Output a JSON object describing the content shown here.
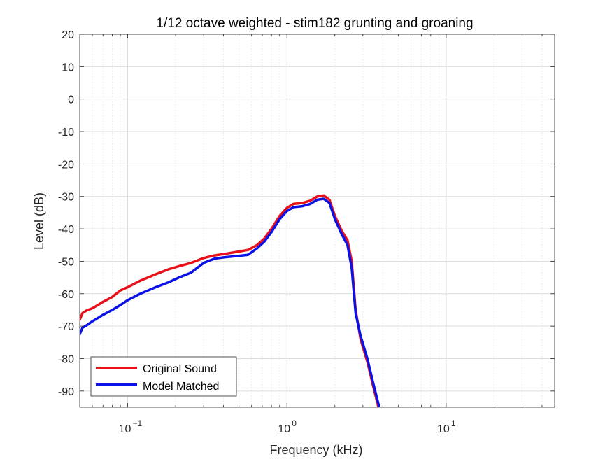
{
  "chart_data": {
    "type": "line",
    "title": "1/12 octave weighted - stim182 grunting and groaning",
    "xlabel": "Frequency (kHz)",
    "ylabel": "Level (dB)",
    "xscale": "log",
    "xlim": [
      0.05,
      48
    ],
    "ylim": [
      -95,
      20
    ],
    "grid": true,
    "minor_grid": true,
    "legend_location": "bottom-left",
    "yticks": [
      20,
      10,
      0,
      -10,
      -20,
      -30,
      -40,
      -50,
      -60,
      -70,
      -80,
      -90
    ],
    "xticks": [
      {
        "value": 0.1,
        "base": "10",
        "exp": "−1"
      },
      {
        "value": 1,
        "base": "10",
        "exp": "0"
      },
      {
        "value": 10,
        "base": "10",
        "exp": "1"
      }
    ],
    "series": [
      {
        "name": "Original Sound",
        "color": "#e8101a",
        "x": [
          0.05,
          0.052,
          0.055,
          0.06,
          0.065,
          0.07,
          0.08,
          0.09,
          0.1,
          0.12,
          0.15,
          0.18,
          0.21,
          0.25,
          0.3,
          0.35,
          0.4,
          0.5,
          0.57,
          0.65,
          0.72,
          0.8,
          0.9,
          1.0,
          1.1,
          1.25,
          1.4,
          1.55,
          1.7,
          1.85,
          2.0,
          2.2,
          2.4,
          2.55,
          2.7,
          2.9,
          3.2,
          3.5,
          3.8
        ],
        "y": [
          -68,
          -66,
          -65.2,
          -64.5,
          -63.5,
          -62.5,
          -61,
          -59,
          -58,
          -56,
          -54,
          -52.5,
          -51.5,
          -50.5,
          -49,
          -48.2,
          -47.8,
          -47,
          -46.5,
          -45,
          -43,
          -40,
          -36,
          -33.5,
          -32.3,
          -32,
          -31.3,
          -30,
          -29.7,
          -31,
          -36,
          -40.5,
          -43.5,
          -50,
          -65,
          -74,
          -81,
          -89,
          -96
        ]
      },
      {
        "name": "Model Matched",
        "color": "#0b12e6",
        "x": [
          0.05,
          0.052,
          0.055,
          0.06,
          0.065,
          0.07,
          0.08,
          0.09,
          0.1,
          0.12,
          0.15,
          0.18,
          0.21,
          0.25,
          0.3,
          0.35,
          0.4,
          0.5,
          0.57,
          0.65,
          0.72,
          0.8,
          0.9,
          1.0,
          1.1,
          1.25,
          1.4,
          1.55,
          1.7,
          1.85,
          2.0,
          2.2,
          2.4,
          2.55,
          2.7,
          2.9,
          3.2,
          3.5,
          3.8
        ],
        "y": [
          -72.5,
          -70.5,
          -69.8,
          -68.5,
          -67.5,
          -66.5,
          -65,
          -63.5,
          -62,
          -60,
          -58,
          -56.5,
          -55,
          -53.5,
          -50.5,
          -49.2,
          -48.8,
          -48.3,
          -48,
          -46,
          -44,
          -41,
          -37,
          -34.5,
          -33.3,
          -33,
          -32.3,
          -31,
          -30.7,
          -32,
          -37,
          -41.5,
          -45,
          -52,
          -66,
          -73,
          -80,
          -88,
          -95
        ]
      }
    ]
  }
}
